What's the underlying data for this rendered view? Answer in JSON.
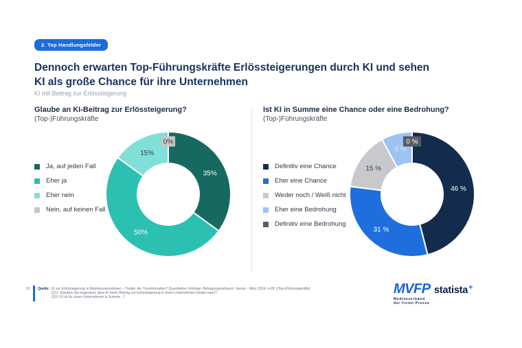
{
  "page": {
    "badge": "2. Top Handlungsfelder",
    "title_line1": "Dennoch erwarten Top-Führungskräfte Erlössteigerungen durch KI und sehen",
    "title_line2": "KI als große Chance für ihre Unternehmen",
    "subtitle": "KI mit Beitrag zur Erlössteigerung"
  },
  "chart_data": [
    {
      "type": "pie",
      "variant": "donut",
      "title": "Glaube an KI-Beitrag zur Erlössteigerung?",
      "subtitle": "(Top-)Führungskräfte",
      "unit": "%",
      "legend_position": "left",
      "start_angle_deg": 0,
      "direction": "clockwise",
      "segments": [
        {
          "category": "Ja, auf jeden Fall",
          "value": 35,
          "color": "#16695e",
          "label": "35%",
          "label_color": "#ffffff"
        },
        {
          "category": "Eher ja",
          "value": 50,
          "color": "#2cc0b2",
          "label": "50%",
          "label_color": "#ffffff"
        },
        {
          "category": "Eher nein",
          "value": 15,
          "color": "#7fe0d7",
          "label": "15%",
          "label_color": "#3a4350"
        },
        {
          "category": "Nein, auf keinen Fall",
          "value": 0,
          "color": "#c6c6c6",
          "label": "0%",
          "label_color": "#3a4350",
          "boxed": true,
          "box_color": "#c6c6c6"
        }
      ]
    },
    {
      "type": "pie",
      "variant": "donut",
      "title": "Ist KI in Summe eine Chance oder eine Bedrohung?",
      "subtitle": "(Top-)Führungskräfte",
      "unit": "%",
      "legend_position": "left",
      "start_angle_deg": 0,
      "direction": "clockwise",
      "segments": [
        {
          "category": "Definitiv eine Chance",
          "value": 46,
          "color": "#132b4d",
          "label": "46 %",
          "label_color": "#ffffff"
        },
        {
          "category": "Eher eine Chance",
          "value": 31,
          "color": "#1e6fdd",
          "label": "31 %",
          "label_color": "#ffffff"
        },
        {
          "category": "Weder noch / Weiß nicht",
          "value": 15,
          "color": "#c7c9cc",
          "label": "15 %",
          "label_color": "#3a4350"
        },
        {
          "category": "Eher eine Bedrohung",
          "value": 8,
          "color": "#9dc3f2",
          "label": "8 %",
          "label_color": "#dde4ed"
        },
        {
          "category": "Definitiv eine Bedrohung",
          "value": 0,
          "color": "#575c62",
          "label": "0 %",
          "label_color": "#ffffff",
          "boxed": true,
          "box_color": "#575c62"
        }
      ]
    }
  ],
  "footer": {
    "page_number": "10",
    "source_label": "Quelle:",
    "source_lines": [
      "KI zur Erlössteigerung in Medienunternehmen – Treiber der Transformation? Quantitative Umfrage; Befragungszeitraum: Januar - März 2024; n=26 ((Top-)Führungskräfte)",
      "Q12: Glauben Sie insgesamt, dass KI einen Beitrag zur Erlössteigerung in Ihrem Unternehmen leisten kann?",
      "Q21: KI ist für unser Unternehmen in Summe...?"
    ]
  },
  "logos": {
    "mvfp_text": "MVFP",
    "mvfp_tagline_line1": "Medienverband",
    "mvfp_tagline_line2": "der freien Presse",
    "statista_text": "statista",
    "statista_plus": "+"
  },
  "colors": {
    "accent_blue": "#1e6bdc",
    "title_navy": "#17325b"
  }
}
